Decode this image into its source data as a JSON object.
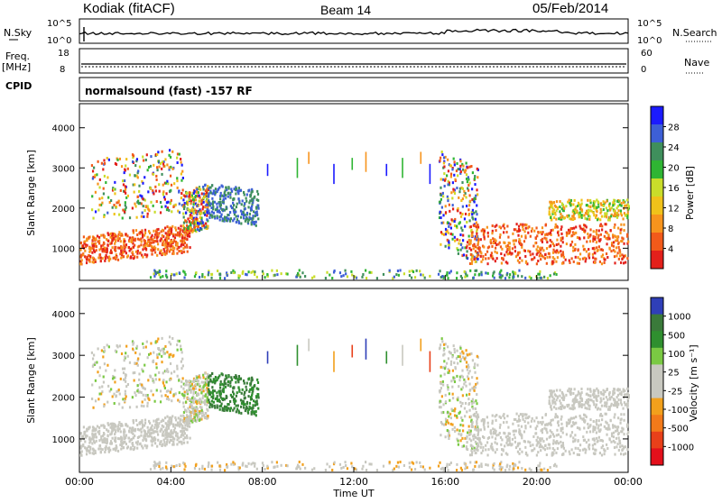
{
  "header": {
    "station": "Kodiak (fitACF)",
    "beam": "Beam 14",
    "date": "05/Feb/2014"
  },
  "top_panels": {
    "nsky_label": "N.Sky",
    "nsky_ticks": [
      "10^5",
      "10^0"
    ],
    "nsearch_label": "N.Search",
    "nsearch_ticks": [
      "10^5",
      "10^0"
    ],
    "freq_label_line1": "Freq.",
    "freq_label_line2": "[MHz]",
    "freq_ticks": [
      "18",
      "8"
    ],
    "nave_label": "Nave",
    "nave_ticks": [
      "60",
      "0"
    ],
    "cpid_label": "CPID",
    "cpid_text": "normalsound (fast) -157 RF"
  },
  "chart_data": [
    {
      "type": "heatmap",
      "name": "power-panel",
      "ylabel": "Slant Range [km]",
      "yticks": [
        "1000",
        "2000",
        "3000",
        "4000"
      ],
      "ylim": [
        200,
        4600
      ],
      "xlim": [
        "00:00",
        "24:00"
      ],
      "colorbar": {
        "label": "Power [dB]",
        "ticks": [
          "4",
          "8",
          "12",
          "16",
          "20",
          "24",
          "28"
        ],
        "colors": [
          "#1b1bff",
          "#3d5fd6",
          "#3f8f5c",
          "#2fb533",
          "#c9dd2a",
          "#f0c21a",
          "#f7941d",
          "#f25a1a",
          "#e3201b"
        ]
      }
    },
    {
      "type": "heatmap",
      "name": "velocity-panel",
      "ylabel": "Slant Range [km]",
      "yticks": [
        "1000",
        "2000",
        "3000",
        "4000"
      ],
      "ylim": [
        200,
        4600
      ],
      "xlim": [
        "00:00",
        "24:00"
      ],
      "colorbar": {
        "label": "Velocity [m s⁻¹]",
        "ticks": [
          "1000",
          "500",
          "100",
          "25",
          "-25",
          "-100",
          "-500",
          "-1000"
        ],
        "colors": [
          "#2f3fb8",
          "#3a7a3a",
          "#2f8f2f",
          "#7ac943",
          "#c8c8c0",
          "#c8c8c0",
          "#f2a01c",
          "#f27a1a",
          "#e8401a",
          "#e3101b"
        ]
      }
    }
  ],
  "x_axis": {
    "ticks": [
      "00:00",
      "04:00",
      "08:00",
      "12:00",
      "16:00",
      "20:00",
      "00:00"
    ],
    "label": "Time UT"
  }
}
